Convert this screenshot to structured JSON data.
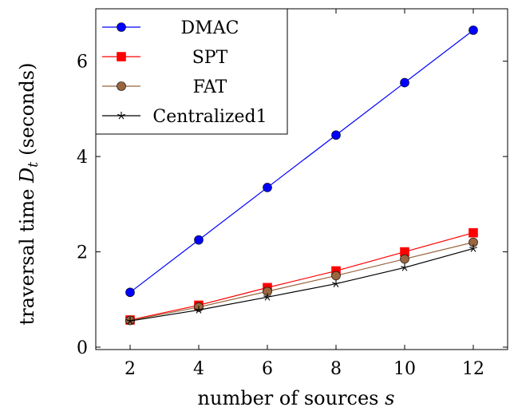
{
  "chart_data": {
    "type": "line",
    "title": "",
    "xlabel": "number of sources",
    "xlabel_var": "s",
    "ylabel": "traversal time",
    "ylabel_var": "D",
    "ylabel_sub": "t",
    "ylabel_unit": "(seconds)",
    "xlim": [
      1,
      13
    ],
    "ylim": [
      -0.05,
      7.1
    ],
    "xticks": [
      2,
      4,
      6,
      8,
      10,
      12
    ],
    "yticks": [
      0,
      2,
      4,
      6
    ],
    "grid": false,
    "legend_position": "top-left",
    "series": [
      {
        "name": "DMAC",
        "color": "#0000ff",
        "marker": "circle",
        "x": [
          2,
          4,
          6,
          8,
          10,
          12
        ],
        "y": [
          1.15,
          2.25,
          3.35,
          4.45,
          5.55,
          6.65
        ]
      },
      {
        "name": "SPT",
        "color": "#ff0000",
        "marker": "square",
        "x": [
          2,
          4,
          6,
          8,
          10,
          12
        ],
        "y": [
          0.57,
          0.88,
          1.25,
          1.6,
          2.0,
          2.4
        ]
      },
      {
        "name": "FAT",
        "color": "#99663f",
        "marker": "circle",
        "x": [
          2,
          4,
          6,
          8,
          10,
          12
        ],
        "y": [
          0.56,
          0.84,
          1.17,
          1.5,
          1.85,
          2.2
        ]
      },
      {
        "name": "Centralized1",
        "color": "#000000",
        "marker": "star",
        "x": [
          2,
          4,
          6,
          8,
          10,
          12
        ],
        "y": [
          0.55,
          0.78,
          1.05,
          1.33,
          1.67,
          2.07
        ]
      }
    ]
  }
}
